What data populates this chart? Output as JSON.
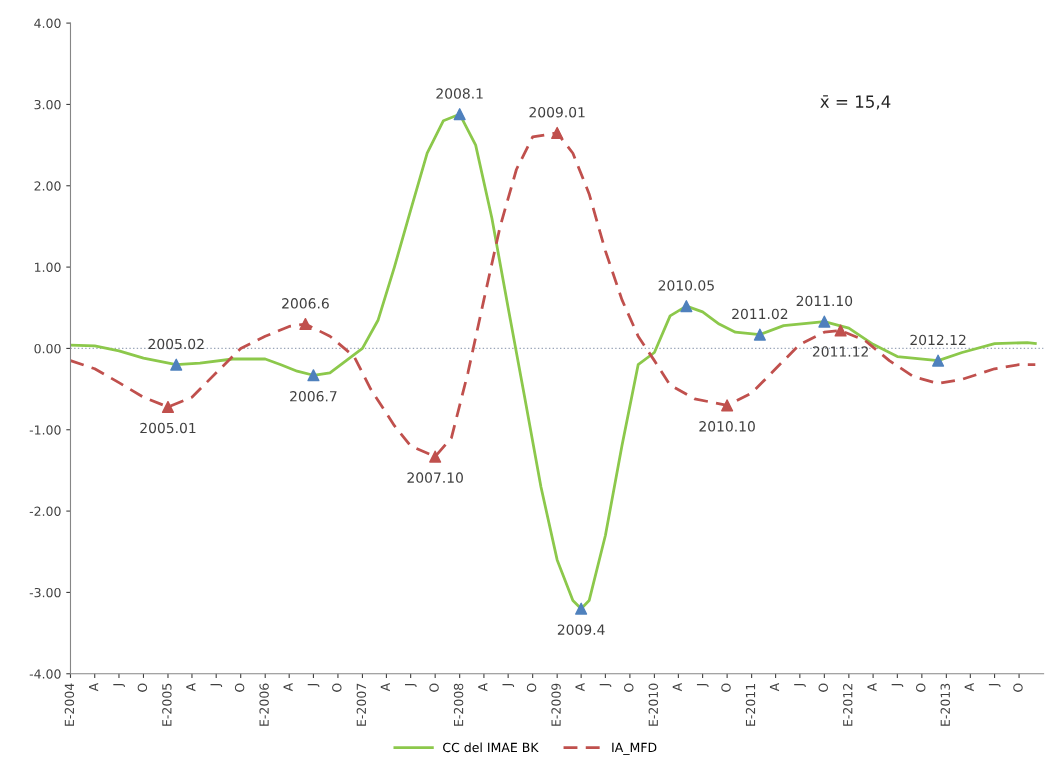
{
  "chart_data": {
    "type": "line",
    "series": [
      {
        "name": "CC del IMAE BK",
        "color": "#8cc84b",
        "line_style": "solid",
        "marker": "none",
        "x": [
          "2004-01",
          "2004-04",
          "2004-07",
          "2004-10",
          "2005-02",
          "2005-05",
          "2005-09",
          "2006-01",
          "2006-03",
          "2006-05",
          "2006-07",
          "2006-09",
          "2006-11",
          "2007-01",
          "2007-03",
          "2007-05",
          "2007-07",
          "2007-09",
          "2007-11",
          "2008-01",
          "2008-03",
          "2008-05",
          "2008-07",
          "2008-09",
          "2008-11",
          "2009-01",
          "2009-03",
          "2009-04",
          "2009-05",
          "2009-07",
          "2009-09",
          "2009-11",
          "2010-01",
          "2010-03",
          "2010-05",
          "2010-07",
          "2010-09",
          "2010-11",
          "2011-02",
          "2011-05",
          "2011-10",
          "2012-01",
          "2012-04",
          "2012-07",
          "2012-12",
          "2013-03",
          "2013-07",
          "2013-11",
          "2013-12"
        ],
        "values": [
          0.04,
          0.03,
          -0.03,
          -0.12,
          -0.2,
          -0.18,
          -0.13,
          -0.13,
          -0.2,
          -0.28,
          -0.33,
          -0.3,
          -0.15,
          0.0,
          0.35,
          1.0,
          1.7,
          2.4,
          2.8,
          2.88,
          2.5,
          1.6,
          0.5,
          -0.6,
          -1.7,
          -2.6,
          -3.1,
          -3.2,
          -3.1,
          -2.3,
          -1.2,
          -0.2,
          -0.05,
          0.4,
          0.52,
          0.45,
          0.3,
          0.2,
          0.17,
          0.28,
          0.33,
          0.25,
          0.05,
          -0.1,
          -0.15,
          -0.05,
          0.06,
          0.07,
          0.06
        ]
      },
      {
        "name": "IA_MFD",
        "color": "#c0504d",
        "line_style": "dashed",
        "marker": "none",
        "x": [
          "2004-01",
          "2004-04",
          "2004-07",
          "2004-10",
          "2005-01",
          "2005-04",
          "2005-07",
          "2005-10",
          "2006-01",
          "2006-04",
          "2006-06",
          "2006-09",
          "2006-12",
          "2007-02",
          "2007-05",
          "2007-07",
          "2007-10",
          "2007-12",
          "2008-02",
          "2008-04",
          "2008-06",
          "2008-08",
          "2008-10",
          "2009-01",
          "2009-03",
          "2009-05",
          "2009-07",
          "2009-09",
          "2009-11",
          "2010-01",
          "2010-03",
          "2010-06",
          "2010-10",
          "2011-01",
          "2011-04",
          "2011-07",
          "2011-10",
          "2011-12",
          "2012-03",
          "2012-06",
          "2012-09",
          "2012-12",
          "2013-03",
          "2013-07",
          "2013-10",
          "2013-12"
        ],
        "values": [
          -0.15,
          -0.25,
          -0.42,
          -0.6,
          -0.72,
          -0.6,
          -0.3,
          0.0,
          0.15,
          0.27,
          0.3,
          0.15,
          -0.1,
          -0.5,
          -0.95,
          -1.2,
          -1.33,
          -1.1,
          -0.3,
          0.6,
          1.5,
          2.2,
          2.6,
          2.65,
          2.4,
          1.9,
          1.2,
          0.6,
          0.15,
          -0.15,
          -0.45,
          -0.62,
          -0.7,
          -0.55,
          -0.25,
          0.05,
          0.2,
          0.22,
          0.1,
          -0.15,
          -0.35,
          -0.43,
          -0.38,
          -0.25,
          -0.2,
          -0.2
        ]
      },
      {
        "type": "scatter",
        "color": "#4f81bd",
        "marker": "triangle",
        "x": [
          "2005-02",
          "2006-07",
          "2008-01",
          "2009-04",
          "2010-05",
          "2011-02",
          "2011-10",
          "2012-12"
        ],
        "values": [
          -0.2,
          -0.33,
          2.88,
          -3.2,
          0.52,
          0.17,
          0.33,
          -0.15
        ]
      },
      {
        "type": "scatter",
        "color": "#c0504d",
        "marker": "triangle",
        "x": [
          "2005-01",
          "2006-06",
          "2007-10",
          "2009-01",
          "2010-10",
          "2011-12"
        ],
        "values": [
          -0.72,
          0.3,
          -1.33,
          2.65,
          -0.7,
          0.22
        ]
      }
    ],
    "xlim": [
      "2004-01",
      "2014-01"
    ],
    "xticks": [
      {
        "value": "2004-01",
        "label": "E-2004"
      },
      {
        "value": "2004-04",
        "label": "A"
      },
      {
        "value": "2004-07",
        "label": "J"
      },
      {
        "value": "2004-10",
        "label": "O"
      },
      {
        "value": "2005-01",
        "label": "E-2005"
      },
      {
        "value": "2005-04",
        "label": "A"
      },
      {
        "value": "2005-07",
        "label": "J"
      },
      {
        "value": "2005-10",
        "label": "O"
      },
      {
        "value": "2006-01",
        "label": "E-2006"
      },
      {
        "value": "2006-04",
        "label": "A"
      },
      {
        "value": "2006-07",
        "label": "J"
      },
      {
        "value": "2006-10",
        "label": "O"
      },
      {
        "value": "2007-01",
        "label": "E-2007"
      },
      {
        "value": "2007-04",
        "label": "A"
      },
      {
        "value": "2007-07",
        "label": "J"
      },
      {
        "value": "2007-10",
        "label": "O"
      },
      {
        "value": "2008-01",
        "label": "E-2008"
      },
      {
        "value": "2008-04",
        "label": "A"
      },
      {
        "value": "2008-07",
        "label": "J"
      },
      {
        "value": "2008-10",
        "label": "O"
      },
      {
        "value": "2009-01",
        "label": "E-2009"
      },
      {
        "value": "2009-04",
        "label": "A"
      },
      {
        "value": "2009-07",
        "label": "J"
      },
      {
        "value": "2009-10",
        "label": "O"
      },
      {
        "value": "2010-01",
        "label": "E-2010"
      },
      {
        "value": "2010-04",
        "label": "A"
      },
      {
        "value": "2010-07",
        "label": "J"
      },
      {
        "value": "2010-10",
        "label": "O"
      },
      {
        "value": "2011-01",
        "label": "E-2011"
      },
      {
        "value": "2011-04",
        "label": "A"
      },
      {
        "value": "2011-07",
        "label": "J"
      },
      {
        "value": "2011-10",
        "label": "O"
      },
      {
        "value": "2012-01",
        "label": "E-2012"
      },
      {
        "value": "2012-04",
        "label": "A"
      },
      {
        "value": "2012-07",
        "label": "J"
      },
      {
        "value": "2012-10",
        "label": "O"
      },
      {
        "value": "2013-01",
        "label": "E-2013"
      },
      {
        "value": "2013-04",
        "label": "A"
      },
      {
        "value": "2013-07",
        "label": "J"
      },
      {
        "value": "2013-10",
        "label": "O"
      }
    ],
    "ylim": [
      -4,
      4
    ],
    "yticks": [
      {
        "value": -4,
        "label": "-4.00"
      },
      {
        "value": -3,
        "label": "-3.00"
      },
      {
        "value": -2,
        "label": "-2.00"
      },
      {
        "value": -1,
        "label": "-1.00"
      },
      {
        "value": 0,
        "label": "0.00"
      },
      {
        "value": 1,
        "label": "1.00"
      },
      {
        "value": 2,
        "label": "2.00"
      },
      {
        "value": 3,
        "label": "3.00"
      },
      {
        "value": 4,
        "label": "4.00"
      }
    ],
    "ref_lines": [
      {
        "axis": "y",
        "value": 0,
        "color": "#9aa5b8",
        "line_style": "dotted"
      }
    ],
    "annotations": [
      "x̄ = 15,4",
      {
        "text": "2005.02",
        "x": "2005-02",
        "y": -0.2
      },
      {
        "text": "2006.7",
        "x": "2006-07",
        "y": -0.33
      },
      {
        "text": "2008.1",
        "x": "2008-01",
        "y": 2.88
      },
      {
        "text": "2009.4",
        "x": "2009-04",
        "y": -3.2
      },
      {
        "text": "2010.05",
        "x": "2010-05",
        "y": 0.52
      },
      {
        "text": "2011.02",
        "x": "2011-02",
        "y": 0.17
      },
      {
        "text": "2011.10",
        "x": "2011-10",
        "y": 0.33
      },
      {
        "text": "2012.12",
        "x": "2012-12",
        "y": -0.15
      },
      {
        "text": "2005.01",
        "x": "2005-01",
        "y": -0.72
      },
      {
        "text": "2006.6",
        "x": "2006-06",
        "y": 0.3
      },
      {
        "text": "2007.10",
        "x": "2007-10",
        "y": -1.33
      },
      {
        "text": "2009.01",
        "x": "2009-01",
        "y": 2.65
      },
      {
        "text": "2010.10",
        "x": "2010-10",
        "y": -0.7
      },
      {
        "text": "2011.12",
        "x": "2011-12",
        "y": 0.22
      }
    ],
    "grid": false,
    "legend": "bottom"
  }
}
